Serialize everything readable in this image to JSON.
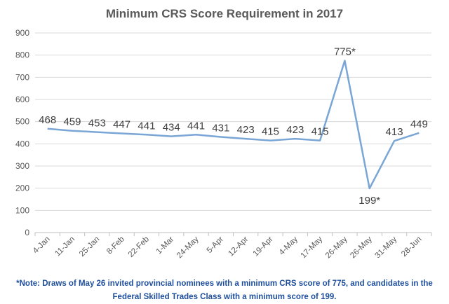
{
  "chart_data": {
    "type": "line",
    "title": "Minimum CRS Score Requirement in 2017",
    "xlabel": "",
    "ylabel": "",
    "ylim": [
      0,
      900
    ],
    "yticks": [
      0,
      100,
      200,
      300,
      400,
      500,
      600,
      700,
      800,
      900
    ],
    "grid": true,
    "legend": "none",
    "line_color": "#7aa6d6",
    "categories": [
      "4-Jan",
      "11-Jan",
      "25-Jan",
      "8-Feb",
      "22-Feb",
      "1-Mar",
      "24-May",
      "5-Apr",
      "12-Apr",
      "19-Apr",
      "4-May",
      "17-May",
      "26-May",
      "26-May",
      "31-May",
      "28-Jun"
    ],
    "values": [
      468,
      459,
      453,
      447,
      441,
      434,
      441,
      431,
      423,
      415,
      423,
      415,
      775,
      199,
      413,
      449
    ],
    "data_labels": [
      "468",
      "459",
      "453",
      "447",
      "441",
      "434",
      "441",
      "431",
      "423",
      "415",
      "423",
      "415",
      "775*",
      "199*",
      "413",
      "449"
    ],
    "note": "*Note: Draws of May 26 invited provincial nominees with a minimum CRS score of 775, and candidates in the Federal Skilled Trades Class with a minimum score of 199."
  }
}
